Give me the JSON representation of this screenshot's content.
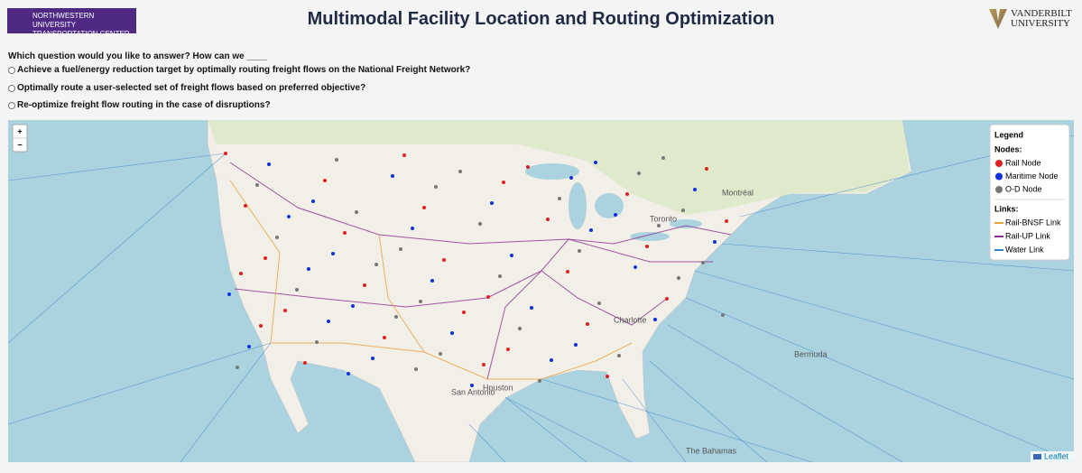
{
  "header": {
    "left_logo": [
      "NORTHWESTERN UNIVERSITY",
      "TRANSPORTATION CENTER"
    ],
    "title": "Multimodal Facility Location and Routing Optimization",
    "right_logo": [
      "VANDERBILT",
      "UNIVERSITY"
    ]
  },
  "question": {
    "prompt": "Which question would you like to answer? How can we ____",
    "options": [
      "Achieve a fuel/energy reduction target by optimally routing freight flows on the National Freight Network?",
      "Optimally route a user-selected set of freight flows based on preferred objective?",
      "Re-optimize freight flow routing in the case of disruptions?"
    ]
  },
  "map": {
    "zoom_in": "+",
    "zoom_out": "−",
    "attribution": "Leaflet",
    "place_labels": [
      "Charlotte",
      "Houston",
      "San Antonio",
      "Toronto",
      "Montréal",
      "The Bahamas",
      "Bermuda"
    ],
    "legend": {
      "title": "Legend",
      "nodes_heading": "Nodes:",
      "nodes": [
        "Rail Node",
        "Maritime Node",
        "O-D Node"
      ],
      "links_heading": "Links:",
      "links": [
        "Rail-BNSF Link",
        "Rail-UP Link",
        "Water Link"
      ]
    }
  }
}
